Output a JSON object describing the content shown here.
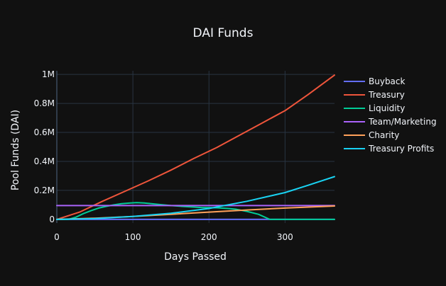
{
  "chart_data": {
    "type": "line",
    "title": "DAI Funds",
    "xlabel": "Days Passed",
    "ylabel": "Pool Funds (DAI)",
    "xlim": [
      0,
      365
    ],
    "ylim": [
      -25000,
      1025000
    ],
    "xticks": [
      0,
      100,
      200,
      300
    ],
    "xtick_labels": [
      "0",
      "100",
      "200",
      "300"
    ],
    "yticks": [
      0,
      200000,
      400000,
      600000,
      800000,
      1000000
    ],
    "ytick_labels": [
      "0",
      "0.2M",
      "0.4M",
      "0.6M",
      "0.8M",
      "1M"
    ],
    "grid": true,
    "legend_position": "right",
    "series": [
      {
        "name": "Buyback",
        "color": "#636efa",
        "x": [
          0,
          365
        ],
        "y": [
          0,
          0
        ]
      },
      {
        "name": "Treasury",
        "color": "#ef553b",
        "x": [
          0,
          30,
          60,
          90,
          120,
          150,
          180,
          210,
          240,
          270,
          300,
          330,
          365
        ],
        "y": [
          0,
          50000,
          125000,
          195000,
          265000,
          340000,
          420000,
          495000,
          580000,
          665000,
          750000,
          860000,
          995000
        ]
      },
      {
        "name": "Liquidity",
        "color": "#00cc96",
        "x": [
          0,
          15,
          25,
          35,
          45,
          55,
          65,
          75,
          85,
          95,
          105,
          115,
          130,
          150,
          170,
          190,
          210,
          225,
          235,
          250,
          265,
          280,
          300,
          365
        ],
        "y": [
          0,
          0,
          15000,
          40000,
          60000,
          78000,
          90000,
          100000,
          108000,
          112000,
          115000,
          113000,
          105000,
          95000,
          88000,
          82000,
          80000,
          75000,
          70000,
          55000,
          35000,
          0,
          0,
          0
        ]
      },
      {
        "name": "Team/Marketing",
        "color": "#ab63fa",
        "x": [
          0,
          365
        ],
        "y": [
          95000,
          95000
        ]
      },
      {
        "name": "Charity",
        "color": "#ffa15a",
        "x": [
          0,
          50,
          100,
          150,
          200,
          250,
          300,
          365
        ],
        "y": [
          0,
          8000,
          20000,
          35000,
          50000,
          65000,
          78000,
          92000
        ]
      },
      {
        "name": "Treasury Profits",
        "color": "#19d3f3",
        "x": [
          0,
          50,
          100,
          150,
          200,
          250,
          300,
          330,
          365
        ],
        "y": [
          0,
          6000,
          20000,
          42000,
          75000,
          125000,
          185000,
          235000,
          295000
        ]
      }
    ]
  }
}
